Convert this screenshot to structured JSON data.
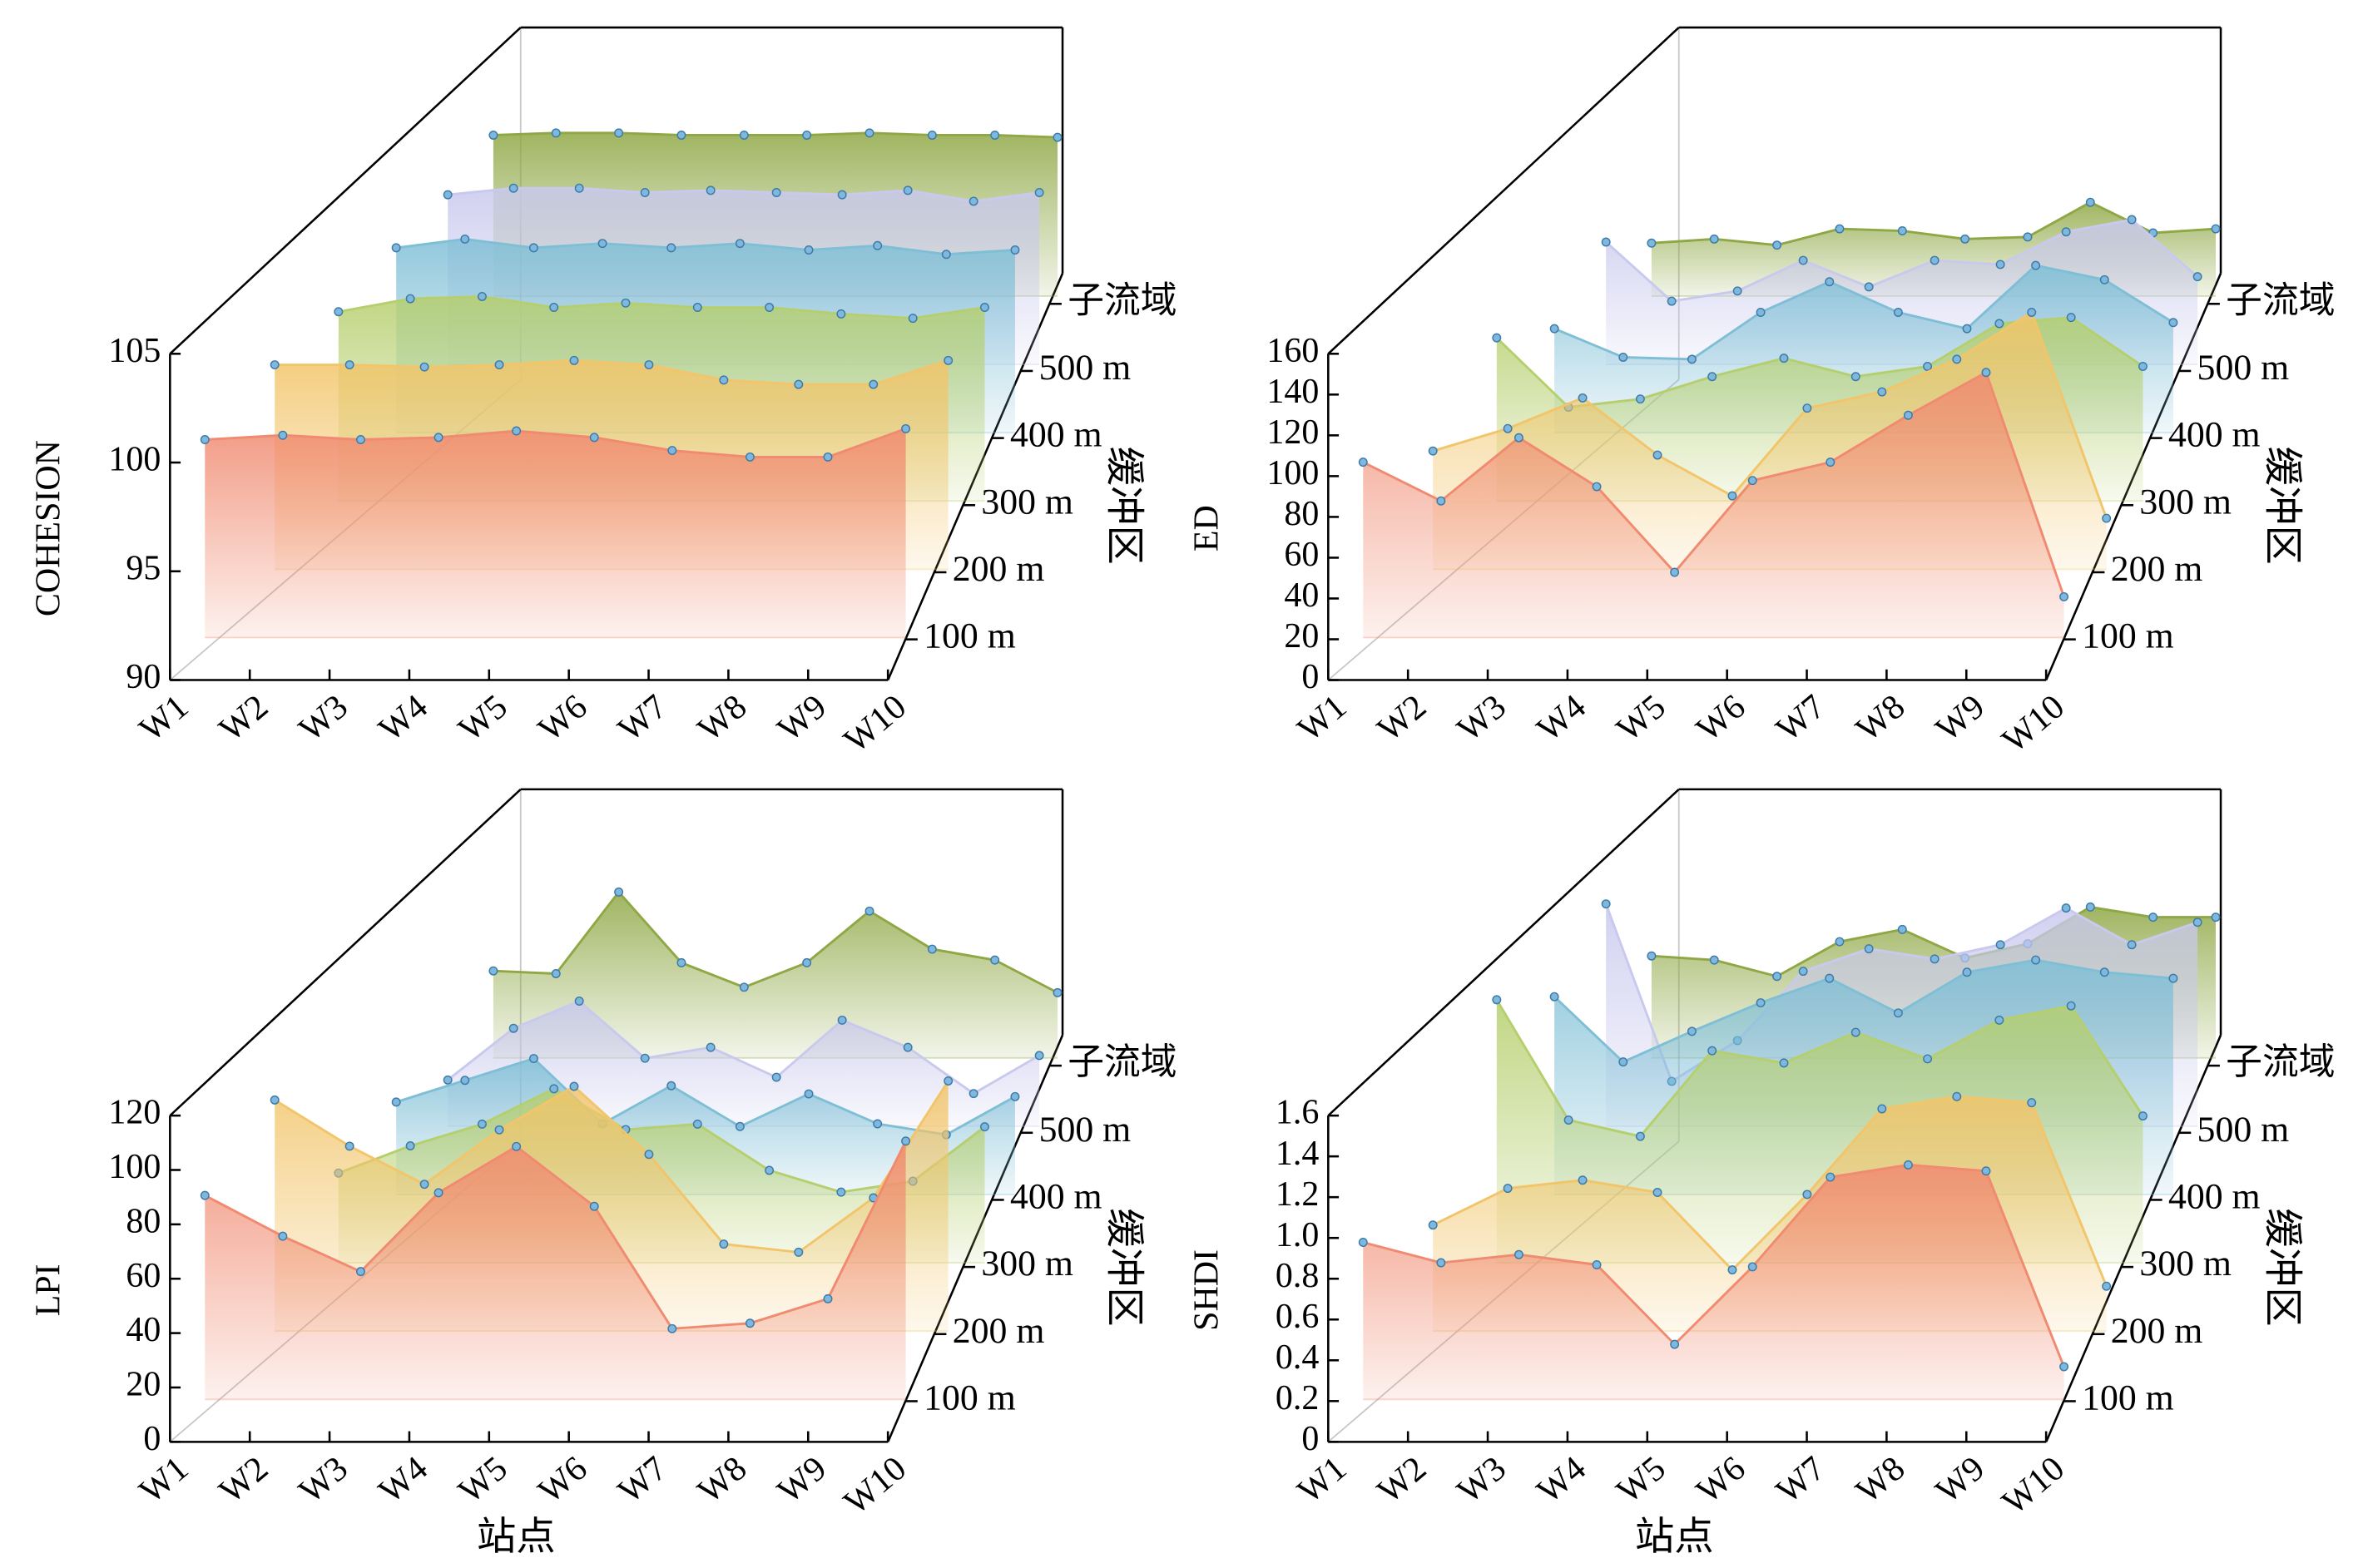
{
  "chart_data": [
    {
      "type": "area",
      "ylabel": "COHESION",
      "zlabel": "缓冲区",
      "categories": [
        "W1",
        "W2",
        "W3",
        "W4",
        "W5",
        "W6",
        "W7",
        "W8",
        "W9",
        "W10"
      ],
      "ylim": [
        90,
        105
      ],
      "yticks": [
        90,
        95,
        100,
        105
      ],
      "series": [
        {
          "name": "100 m",
          "color": "#f08a70",
          "values": [
            99.1,
            99.3,
            99.1,
            99.2,
            99.5,
            99.2,
            98.6,
            98.3,
            98.3,
            99.6
          ]
        },
        {
          "name": "200 m",
          "color": "#f2c56a",
          "values": [
            99.4,
            99.4,
            99.3,
            99.4,
            99.6,
            99.4,
            98.7,
            98.5,
            98.5,
            99.6
          ]
        },
        {
          "name": "300 m",
          "color": "#b6cf6e",
          "values": [
            98.7,
            99.3,
            99.4,
            98.9,
            99.1,
            98.9,
            98.9,
            98.6,
            98.4,
            98.9
          ]
        },
        {
          "name": "400 m",
          "color": "#7fbfd6",
          "values": [
            98.5,
            98.9,
            98.5,
            98.7,
            98.5,
            98.7,
            98.4,
            98.6,
            98.2,
            98.4
          ]
        },
        {
          "name": "500 m",
          "color": "#c9c9ee",
          "values": [
            97.8,
            98.1,
            98.1,
            97.9,
            98.0,
            97.9,
            97.8,
            98.0,
            97.5,
            97.9
          ]
        },
        {
          "name": "子流域",
          "color": "#8fa845",
          "values": [
            97.4,
            97.5,
            97.5,
            97.4,
            97.4,
            97.4,
            97.5,
            97.4,
            97.4,
            97.3
          ]
        }
      ]
    },
    {
      "type": "area",
      "ylabel": "ED",
      "zlabel": "缓冲区",
      "categories": [
        "W1",
        "W2",
        "W3",
        "W4",
        "W5",
        "W6",
        "W7",
        "W8",
        "W9",
        "W10"
      ],
      "ylim": [
        0,
        160
      ],
      "yticks": [
        0,
        20,
        40,
        60,
        80,
        100,
        120,
        140,
        160
      ],
      "series": [
        {
          "name": "100 m",
          "color": "#f08a70",
          "values": [
            86,
            67,
            98,
            74,
            32,
            77,
            86,
            109,
            130,
            20
          ]
        },
        {
          "name": "200 m",
          "color": "#f2c56a",
          "values": [
            58,
            69,
            84,
            56,
            36,
            79,
            87,
            103,
            126,
            25
          ]
        },
        {
          "name": "300 m",
          "color": "#b6cf6e",
          "values": [
            80,
            46,
            50,
            61,
            70,
            61,
            66,
            87,
            90,
            66
          ]
        },
        {
          "name": "400 m",
          "color": "#7fbfd6",
          "values": [
            51,
            37,
            36,
            59,
            74,
            59,
            51,
            82,
            75,
            54
          ]
        },
        {
          "name": "500 m",
          "color": "#c9c9ee",
          "values": [
            60,
            31,
            36,
            51,
            38,
            51,
            49,
            65,
            71,
            43
          ]
        },
        {
          "name": "子流域",
          "color": "#8fa845",
          "values": [
            26,
            28,
            25,
            33,
            32,
            28,
            29,
            46,
            31,
            33
          ]
        }
      ]
    },
    {
      "type": "area",
      "ylabel": "LPI",
      "xlabel": "站点",
      "zlabel": "缓冲区",
      "categories": [
        "W1",
        "W2",
        "W3",
        "W4",
        "W5",
        "W6",
        "W7",
        "W8",
        "W9",
        "W10"
      ],
      "ylim": [
        0,
        120
      ],
      "yticks": [
        0,
        20,
        40,
        60,
        80,
        100,
        120
      ],
      "series": [
        {
          "name": "100 m",
          "color": "#f08a70",
          "values": [
            75,
            60,
            47,
            76,
            93,
            71,
            26,
            28,
            37,
            95
          ]
        },
        {
          "name": "200 m",
          "color": "#f2c56a",
          "values": [
            85,
            68,
            54,
            74,
            90,
            65,
            32,
            29,
            49,
            92
          ]
        },
        {
          "name": "300 m",
          "color": "#b6cf6e",
          "values": [
            33,
            43,
            51,
            64,
            49,
            51,
            34,
            26,
            30,
            50
          ]
        },
        {
          "name": "400 m",
          "color": "#7fbfd6",
          "values": [
            34,
            42,
            50,
            26,
            40,
            25,
            37,
            26,
            22,
            36
          ]
        },
        {
          "name": "500 m",
          "color": "#c9c9ee",
          "values": [
            17,
            36,
            46,
            25,
            29,
            18,
            39,
            29,
            12,
            26
          ]
        },
        {
          "name": "子流域",
          "color": "#8fa845",
          "values": [
            32,
            31,
            61,
            35,
            26,
            35,
            54,
            40,
            36,
            24
          ]
        }
      ]
    },
    {
      "type": "area",
      "ylabel": "SHDI",
      "xlabel": "站点",
      "zlabel": "缓冲区",
      "categories": [
        "W1",
        "W2",
        "W3",
        "W4",
        "W5",
        "W6",
        "W7",
        "W8",
        "W9",
        "W10"
      ],
      "ylim": [
        0,
        1.6
      ],
      "yticks": [
        0,
        0.2,
        0.4,
        0.6,
        0.8,
        {
          "value": 1,
          "label": "1.0"
        },
        1.2,
        1.4,
        1.6
      ],
      "series": [
        {
          "name": "100 m",
          "color": "#f08a70",
          "values": [
            0.77,
            0.67,
            0.71,
            0.66,
            0.27,
            0.65,
            1.09,
            1.15,
            1.12,
            0.16
          ]
        },
        {
          "name": "200 m",
          "color": "#f2c56a",
          "values": [
            0.52,
            0.7,
            0.74,
            0.68,
            0.3,
            0.67,
            1.09,
            1.15,
            1.12,
            0.22
          ]
        },
        {
          "name": "300 m",
          "color": "#b6cf6e",
          "values": [
            1.29,
            0.7,
            0.62,
            1.04,
            0.98,
            1.13,
            1.0,
            1.19,
            1.26,
            0.72
          ]
        },
        {
          "name": "400 m",
          "color": "#7fbfd6",
          "values": [
            0.97,
            0.65,
            0.8,
            0.94,
            1.06,
            0.89,
            1.09,
            1.15,
            1.09,
            1.06
          ]
        },
        {
          "name": "500 m",
          "color": "#c9c9ee",
          "values": [
            1.09,
            0.22,
            0.42,
            0.76,
            0.87,
            0.82,
            0.89,
            1.07,
            0.89,
            1.0
          ]
        },
        {
          "name": "子流域",
          "color": "#8fa845",
          "values": [
            0.5,
            0.48,
            0.4,
            0.57,
            0.63,
            0.49,
            0.56,
            0.74,
            0.69,
            0.69
          ]
        }
      ]
    }
  ]
}
